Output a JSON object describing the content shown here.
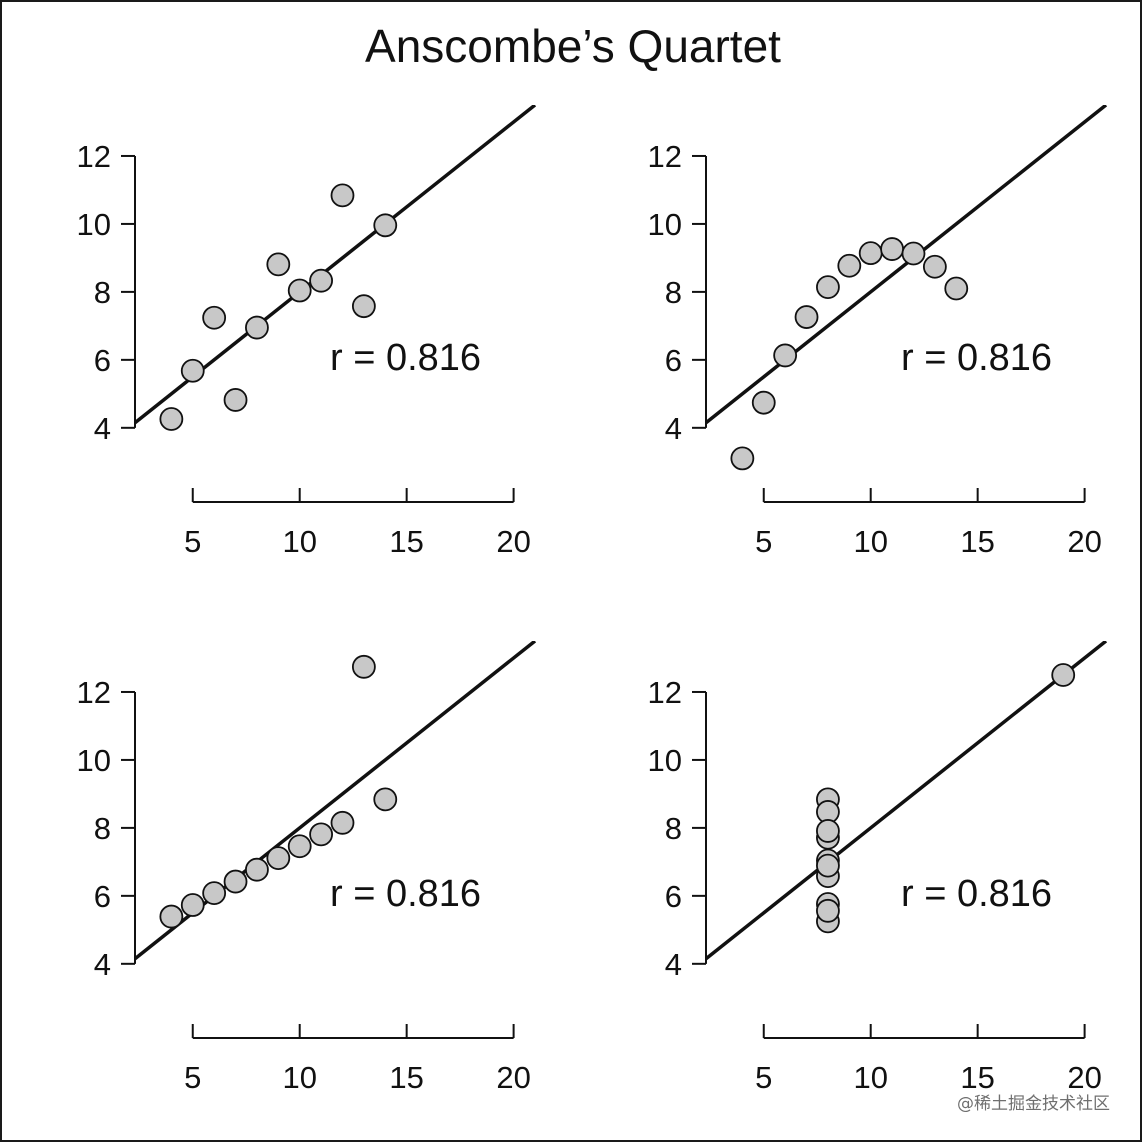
{
  "title": "Anscombe’s Quartet",
  "watermark": "@稀土掘金技术社区",
  "colors": {
    "point_fill": "#c8c8c8",
    "point_stroke": "#111111",
    "line": "#111111",
    "axis": "#111111",
    "text": "#111111"
  },
  "chart_data": [
    {
      "type": "scatter",
      "panel": "top-left",
      "x": [
        10,
        8,
        13,
        9,
        11,
        14,
        6,
        4,
        12,
        7,
        5
      ],
      "y": [
        8.04,
        6.95,
        7.58,
        8.81,
        8.33,
        9.96,
        7.24,
        4.26,
        10.84,
        4.82,
        5.68
      ],
      "fit_line": {
        "intercept": 3,
        "slope": 0.5
      },
      "annotation": "r = 0.816",
      "xticks": [
        "5",
        "10",
        "15",
        "20"
      ],
      "yticks": [
        "4",
        "6",
        "8",
        "10",
        "12"
      ],
      "xlim": [
        2.3,
        21
      ],
      "ylim": [
        3.2,
        13.5
      ],
      "title": "",
      "xlabel": "",
      "ylabel": "",
      "grid": false
    },
    {
      "type": "scatter",
      "panel": "top-right",
      "x": [
        10,
        8,
        13,
        9,
        11,
        14,
        6,
        4,
        12,
        7,
        5
      ],
      "y": [
        9.14,
        8.14,
        8.74,
        8.77,
        9.26,
        8.1,
        6.13,
        3.1,
        9.13,
        7.26,
        4.74
      ],
      "fit_line": {
        "intercept": 3,
        "slope": 0.5
      },
      "annotation": "r = 0.816",
      "xticks": [
        "5",
        "10",
        "15",
        "20"
      ],
      "yticks": [
        "4",
        "6",
        "8",
        "10",
        "12"
      ],
      "xlim": [
        2.3,
        21
      ],
      "ylim": [
        3.2,
        13.5
      ],
      "title": "",
      "xlabel": "",
      "ylabel": "",
      "grid": false
    },
    {
      "type": "scatter",
      "panel": "bottom-left",
      "x": [
        10,
        8,
        13,
        9,
        11,
        14,
        6,
        4,
        12,
        7,
        5
      ],
      "y": [
        7.46,
        6.77,
        12.74,
        7.11,
        7.81,
        8.84,
        6.08,
        5.39,
        8.15,
        6.42,
        5.73
      ],
      "fit_line": {
        "intercept": 3,
        "slope": 0.5
      },
      "annotation": "r = 0.816",
      "xticks": [
        "5",
        "10",
        "15",
        "20"
      ],
      "yticks": [
        "4",
        "6",
        "8",
        "10",
        "12"
      ],
      "xlim": [
        2.3,
        21
      ],
      "ylim": [
        3.2,
        13.5
      ],
      "title": "",
      "xlabel": "",
      "ylabel": "",
      "grid": false
    },
    {
      "type": "scatter",
      "panel": "bottom-right",
      "x": [
        8,
        8,
        8,
        8,
        8,
        8,
        8,
        19,
        8,
        8,
        8
      ],
      "y": [
        6.58,
        5.76,
        7.71,
        8.84,
        8.47,
        7.04,
        5.25,
        12.5,
        5.56,
        7.91,
        6.89
      ],
      "fit_line": {
        "intercept": 3,
        "slope": 0.5
      },
      "annotation": "r = 0.816",
      "xticks": [
        "5",
        "10",
        "15",
        "20"
      ],
      "yticks": [
        "4",
        "6",
        "8",
        "10",
        "12"
      ],
      "xlim": [
        2.3,
        21
      ],
      "ylim": [
        3.2,
        13.5
      ],
      "title": "",
      "xlabel": "",
      "ylabel": "",
      "grid": false
    }
  ]
}
